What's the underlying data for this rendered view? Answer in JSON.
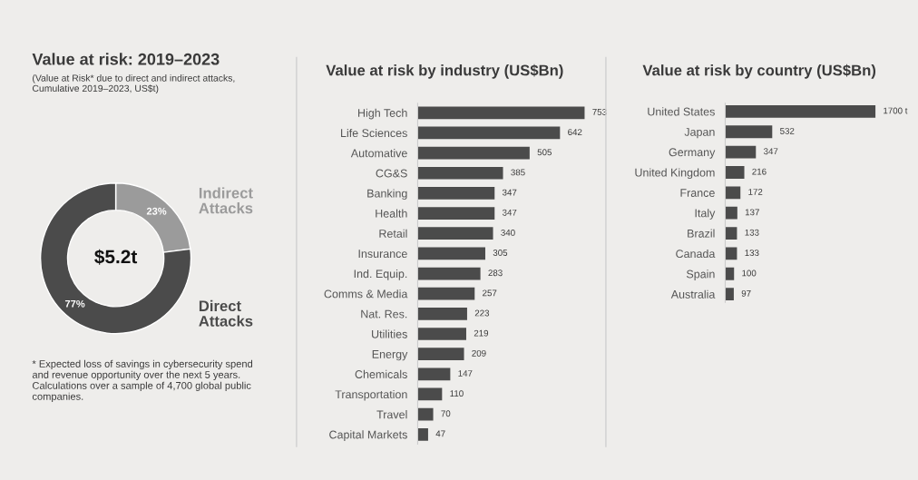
{
  "chart_data": [
    {
      "type": "donut",
      "title": "Value at risk: 2019–2023",
      "subtitle": "(Value at Risk* due to direct and indirect attacks, Cumulative 2019–2023, US$t)",
      "categories": [
        "Indirect Attacks",
        "Direct Attacks"
      ],
      "values": [
        23,
        77
      ],
      "value_labels": [
        "23%",
        "77%"
      ],
      "colors": [
        "#9b9b9b",
        "#4b4b4b"
      ],
      "annotations": [
        "$5.2t",
        "* Expected loss of savings in cybersecurity spend and revenue opportunity over the next 5 years. Calculations over a sample of 4,700 global public companies."
      ]
    },
    {
      "type": "bar",
      "orientation": "horizontal",
      "title": "Value at risk by industry (US$Bn)",
      "categories": [
        "High Tech",
        "Life Sciences",
        "Automative",
        "CG&S",
        "Banking",
        "Health",
        "Retail",
        "Insurance",
        "Ind. Equip.",
        "Comms & Media",
        "Nat. Res.",
        "Utilities",
        "Energy",
        "Chemicals",
        "Transportation",
        "Travel",
        "Capital Markets"
      ],
      "values": [
        753,
        642,
        505,
        385,
        347,
        347,
        340,
        305,
        283,
        257,
        223,
        219,
        209,
        147,
        110,
        70,
        47
      ],
      "color": "#4b4b4b",
      "data_labels": true
    },
    {
      "type": "bar",
      "orientation": "horizontal",
      "title": "Value at risk by country (US$Bn)",
      "categories": [
        "United States",
        "Japan",
        "Germany",
        "United Kingdom",
        "France",
        "Italy",
        "Brazil",
        "Canada",
        "Spain",
        "Australia"
      ],
      "values": [
        1700,
        532,
        347,
        216,
        172,
        137,
        133,
        133,
        100,
        97
      ],
      "value_labels": [
        "1700 t",
        "532",
        "347",
        "216",
        "172",
        "137",
        "133",
        "133",
        "100",
        "97"
      ],
      "color": "#4b4b4b"
    }
  ]
}
